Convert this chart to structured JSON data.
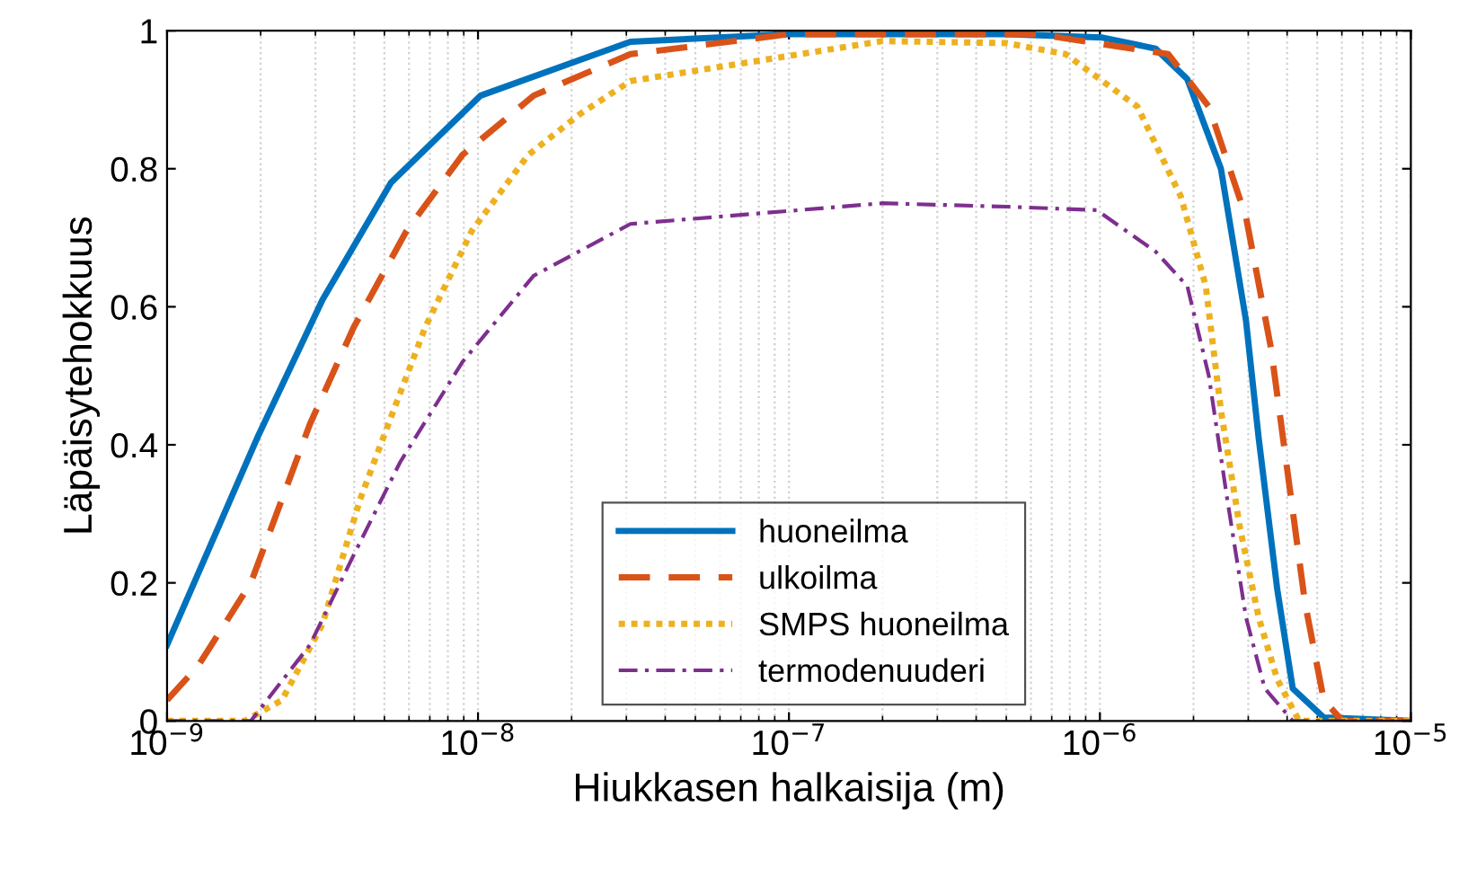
{
  "chart_data": {
    "type": "line",
    "xlabel": "Hiukkasen halkaisija (m)",
    "ylabel": "Läpäisytehokkuus",
    "log": "x",
    "grid": "x",
    "legend": "bottom",
    "xlim": [
      1e-09,
      1e-05
    ],
    "xticks": [
      {
        "value": 1e-09,
        "label": "10$^{−9}$"
      },
      {
        "value": 1e-08,
        "label": "10$^{−8}$"
      },
      {
        "value": 1e-07,
        "label": "10$^{−7}$"
      },
      {
        "value": 1e-06,
        "label": "10$^{−6}$"
      },
      {
        "value": 1e-05,
        "label": "10$^{−5}$"
      }
    ],
    "ylim": [
      0,
      1
    ],
    "yticks": [
      0,
      0.2,
      0.4,
      0.6,
      0.8,
      1
    ],
    "series": [
      {
        "name": "huoneilma",
        "color": "#0072bd",
        "line_style": "solid",
        "x": [
          1e-09,
          1.95e-09,
          3.16e-09,
          5.25e-09,
          1.02e-08,
          3.09e-08,
          1e-07,
          5.01e-07,
          1.02e-06,
          1.51e-06,
          1.91e-06,
          2.45e-06,
          2.95e-06,
          3.24e-06,
          3.72e-06,
          4.17e-06,
          5.25e-06,
          1e-05
        ],
        "values": [
          0.11,
          0.41,
          0.61,
          0.78,
          0.906,
          0.984,
          0.995,
          0.995,
          0.99,
          0.974,
          0.93,
          0.8,
          0.58,
          0.41,
          0.19,
          0.047,
          0.005,
          0
        ]
      },
      {
        "name": "ulkoilma",
        "color": "#d95319",
        "line_style": "dashed",
        "x": [
          1e-09,
          1.26e-09,
          1.86e-09,
          2.88e-09,
          3.98e-09,
          5.89e-09,
          8.91e-09,
          1.51e-08,
          3.09e-08,
          1e-07,
          6.31e-07,
          1.66e-06,
          2.24e-06,
          2.95e-06,
          3.55e-06,
          4.07e-06,
          4.57e-06,
          5.25e-06,
          6.03e-06,
          1e-05
        ],
        "values": [
          0.03,
          0.08,
          0.2,
          0.43,
          0.57,
          0.71,
          0.82,
          0.906,
          0.966,
          0.995,
          0.995,
          0.966,
          0.89,
          0.73,
          0.54,
          0.34,
          0.17,
          0.03,
          0,
          0
        ]
      },
      {
        "name": "SMPS huoneilma",
        "color": "#edb120",
        "line_style": "dotted",
        "x": [
          1e-09,
          1.78e-09,
          2.34e-09,
          3.16e-09,
          4.17e-09,
          5.25e-09,
          6.76e-09,
          9.55e-09,
          1.45e-08,
          2.14e-08,
          3.09e-08,
          2e-07,
          5.01e-07,
          7.76e-07,
          1.32e-06,
          1.82e-06,
          2.19e-06,
          2.45e-06,
          2.82e-06,
          3.24e-06,
          3.72e-06,
          4.37e-06,
          1e-05
        ],
        "values": [
          0,
          0,
          0.03,
          0.14,
          0.32,
          0.44,
          0.57,
          0.71,
          0.82,
          0.88,
          0.927,
          0.985,
          0.982,
          0.966,
          0.89,
          0.76,
          0.63,
          0.45,
          0.28,
          0.15,
          0.06,
          0,
          0
        ]
      },
      {
        "name": "termodenuuderi",
        "color": "#7e2f8e",
        "line_style": "dashdot",
        "x": [
          1e-09,
          1.86e-09,
          2.88e-09,
          3.98e-09,
          5.62e-09,
          8.91e-09,
          1.51e-08,
          3.09e-08,
          2e-07,
          5.01e-07,
          9.77e-07,
          1.51e-06,
          1.91e-06,
          2.24e-06,
          2.57e-06,
          2.95e-06,
          3.39e-06,
          4.17e-06,
          1e-05
        ],
        "values": [
          0,
          0,
          0.11,
          0.24,
          0.375,
          0.52,
          0.645,
          0.72,
          0.75,
          0.745,
          0.74,
          0.68,
          0.63,
          0.5,
          0.32,
          0.15,
          0.047,
          0,
          0
        ]
      }
    ]
  }
}
